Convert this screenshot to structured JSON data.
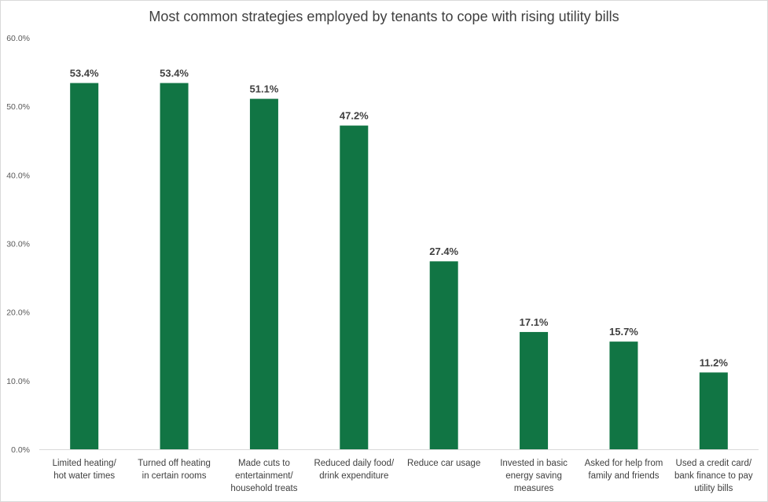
{
  "chart_data": {
    "type": "bar",
    "title": "Most common strategies employed by tenants to cope with rising utility bills",
    "xlabel": "",
    "ylabel": "",
    "ylim": [
      0,
      60
    ],
    "yticks": [
      "0.0%",
      "10.0%",
      "20.0%",
      "30.0%",
      "40.0%",
      "50.0%",
      "60.0%"
    ],
    "grid": false,
    "legend": "none",
    "bar_color": "#117544",
    "categories": [
      [
        "Limited heating/",
        "hot water times"
      ],
      [
        "Turned off heating",
        "in certain rooms"
      ],
      [
        "Made cuts to",
        "entertainment/",
        "household treats"
      ],
      [
        "Reduced daily food/",
        "drink expenditure"
      ],
      [
        "Reduce  car usage"
      ],
      [
        "Invested in basic",
        "energy saving",
        "measures"
      ],
      [
        "Asked for help from",
        "family and friends"
      ],
      [
        "Used a credit card/",
        "bank finance to pay",
        "utility bills"
      ]
    ],
    "values": [
      53.4,
      53.4,
      51.1,
      47.2,
      27.4,
      17.1,
      15.7,
      11.2
    ],
    "data_labels": [
      "53.4%",
      "53.4%",
      "51.1%",
      "47.2%",
      "27.4%",
      "17.1%",
      "15.7%",
      "11.2%"
    ]
  }
}
